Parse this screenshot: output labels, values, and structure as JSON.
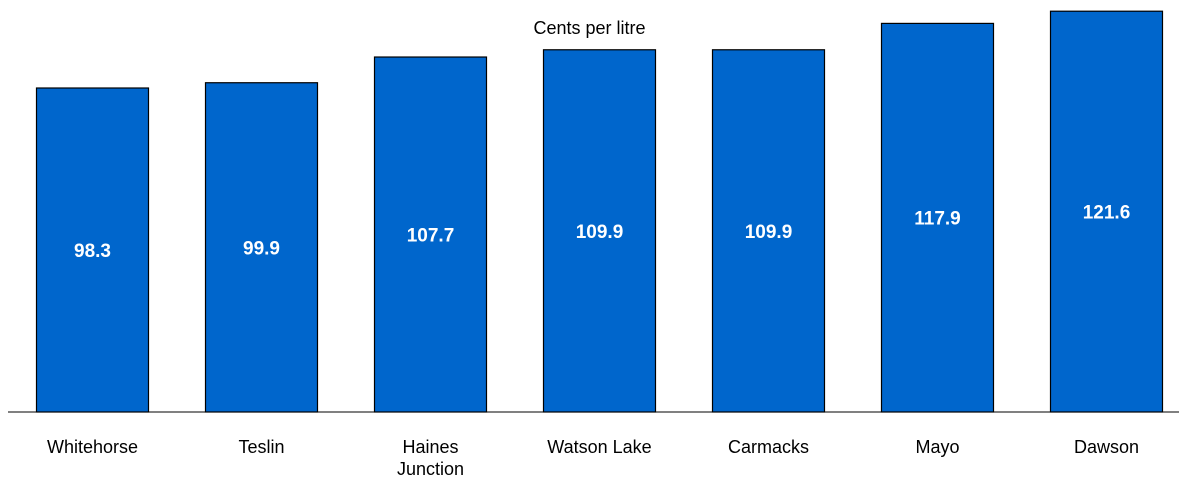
{
  "chart_data": {
    "type": "bar",
    "title": "Cents per litre",
    "xlabel": "",
    "ylabel": "",
    "categories": [
      "Whitehorse",
      "Teslin",
      "Haines Junction",
      "Watson Lake",
      "Carmacks",
      "Mayo",
      "Dawson"
    ],
    "values": [
      98.3,
      99.9,
      107.7,
      109.9,
      109.9,
      117.9,
      121.6
    ],
    "value_labels": [
      "98.3",
      "99.9",
      "107.7",
      "109.9",
      "109.9",
      "117.9",
      "121.6"
    ],
    "ylim": [
      0,
      125
    ],
    "grid": false,
    "legend": "none",
    "bar_color": "#0066CC",
    "bar_stroke": "#000000",
    "label_color": "#FFFFFF"
  }
}
